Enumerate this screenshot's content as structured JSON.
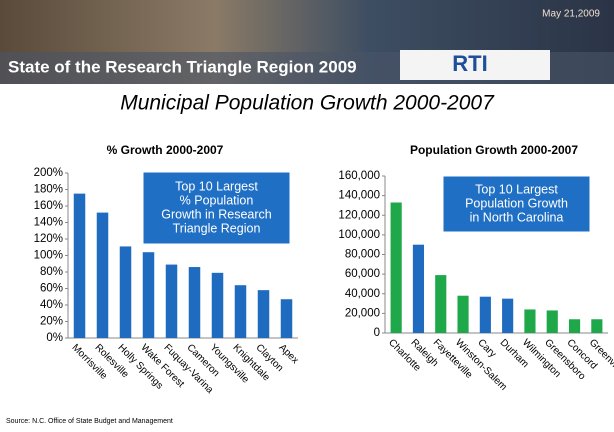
{
  "header": {
    "banner": "State of the Research Triangle Region 2009",
    "date": "May 21,2009",
    "logo": "RTI",
    "title": "Municipal Population Growth 2000-2007",
    "source": "Source: N.C. Office of State Budget and Management"
  },
  "chart_data": [
    {
      "type": "bar",
      "title": "% Growth 2000-2007",
      "categories": [
        "Morrisville",
        "Rolesville",
        "Holly Springs",
        "Wake Forest",
        "Fuquay-Varina",
        "Cameron",
        "Youngsville",
        "Knightdale",
        "Clayton",
        "Apex"
      ],
      "values": [
        175,
        152,
        111,
        104,
        89,
        86,
        79,
        64,
        58,
        47
      ],
      "color": "#1f6bbf",
      "ylim": [
        0,
        200
      ],
      "yticks": [
        {
          "value": 0,
          "label": "0%"
        },
        {
          "value": 20,
          "label": "20%"
        },
        {
          "value": 40,
          "label": "40%"
        },
        {
          "value": 60,
          "label": "60%"
        },
        {
          "value": 80,
          "label": "80%"
        },
        {
          "value": 100,
          "label": "100%"
        },
        {
          "value": 120,
          "label": "120%"
        },
        {
          "value": 140,
          "label": "140%"
        },
        {
          "value": 160,
          "label": "160%"
        },
        {
          "value": 180,
          "label": "180%"
        },
        {
          "value": 200,
          "label": "200%"
        }
      ],
      "annotation": [
        "Top 10 Largest",
        "% Population",
        "Growth in Research",
        "Triangle Region"
      ]
    },
    {
      "type": "bar",
      "title": "Population Growth 2000-2007",
      "categories": [
        "Charlotte",
        "Raleigh",
        "Fayetteville",
        "Winston-Salem",
        "Cary",
        "Durham",
        "Wilmington",
        "Greensboro",
        "Concord",
        "Greenville"
      ],
      "values": [
        133000,
        90000,
        59000,
        38000,
        37000,
        35000,
        24000,
        23000,
        14000,
        14000
      ],
      "colors": [
        "#1fa84a",
        "#1f6bbf",
        "#1fa84a",
        "#1fa84a",
        "#1f6bbf",
        "#1f6bbf",
        "#1fa84a",
        "#1fa84a",
        "#1fa84a",
        "#1fa84a"
      ],
      "ylim": [
        0,
        160000
      ],
      "yticks": [
        0,
        {
          "value": 20000,
          "label": "20,000"
        },
        {
          "value": 40000,
          "label": "40,000"
        },
        {
          "value": 60000,
          "label": "60,000"
        },
        {
          "value": 80000,
          "label": "80,000"
        },
        {
          "value": 100000,
          "label": "100,000"
        },
        {
          "value": 120000,
          "label": "120,000"
        },
        {
          "value": 140000,
          "label": "140,000"
        },
        {
          "value": 160000,
          "label": "160,000"
        }
      ],
      "annotation": [
        "Top 10 Largest",
        "Population Growth",
        "in North Carolina"
      ]
    }
  ]
}
